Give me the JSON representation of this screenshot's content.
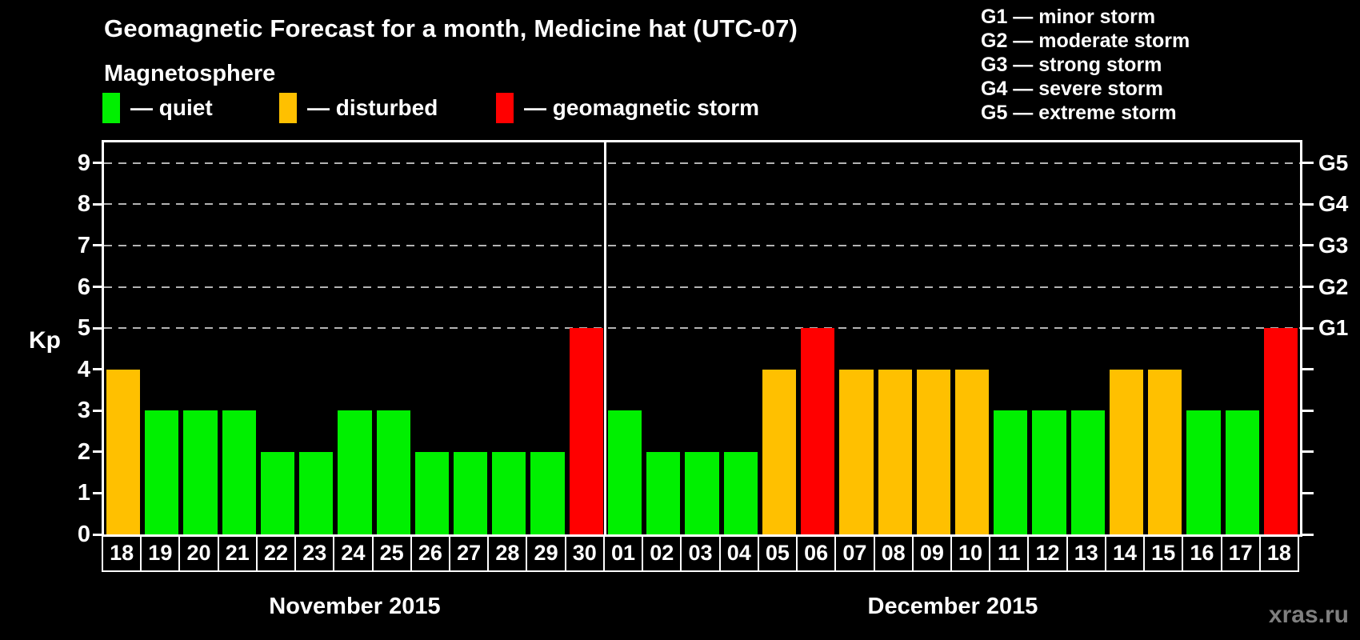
{
  "header": {
    "title": "Geomagnetic Forecast for a month, Medicine hat (UTC-07)",
    "subtitle": "Magnetosphere"
  },
  "legend": {
    "items": [
      {
        "name": "quiet",
        "label": "— quiet",
        "color": "#00f000"
      },
      {
        "name": "disturbed",
        "label": "— disturbed",
        "color": "#ffc000"
      },
      {
        "name": "geomagnetic-storm",
        "label": "— geomagnetic storm",
        "color": "#ff0000"
      }
    ]
  },
  "g_legend": {
    "items": [
      "G1 — minor storm",
      "G2 — moderate storm",
      "G3 — strong storm",
      "G4 — severe storm",
      "G5 — extreme storm"
    ]
  },
  "watermark": "xras.ru",
  "chart_data": {
    "type": "bar",
    "title": "Geomagnetic Forecast for a month, Medicine hat (UTC-07)",
    "ylabel": "Kp",
    "ylim": [
      0,
      9.5
    ],
    "y_ticks": [
      0,
      1,
      2,
      3,
      4,
      5,
      6,
      7,
      8,
      9
    ],
    "gridlines_at_kp": [
      5,
      6,
      7,
      8,
      9
    ],
    "grid_color": "#b3b3b3",
    "right_axis_labels": [
      {
        "kp": 5,
        "label": "G1"
      },
      {
        "kp": 6,
        "label": "G2"
      },
      {
        "kp": 7,
        "label": "G3"
      },
      {
        "kp": 8,
        "label": "G4"
      },
      {
        "kp": 9,
        "label": "G5"
      }
    ],
    "bar_colors": {
      "quiet": "#00f000",
      "disturbed": "#ffc000",
      "storm": "#ff0000"
    },
    "color_rule": "Kp<=3 quiet (green), Kp=4 disturbed (orange), Kp>=5 geomagnetic storm (red)",
    "groups": [
      {
        "label": "November 2015",
        "days": [
          "18",
          "19",
          "20",
          "21",
          "22",
          "23",
          "24",
          "25",
          "26",
          "27",
          "28",
          "29",
          "30"
        ],
        "values": [
          4,
          3,
          3,
          3,
          2,
          2,
          3,
          3,
          2,
          2,
          2,
          2,
          5
        ],
        "status": [
          "disturbed",
          "quiet",
          "quiet",
          "quiet",
          "quiet",
          "quiet",
          "quiet",
          "quiet",
          "quiet",
          "quiet",
          "quiet",
          "quiet",
          "storm"
        ]
      },
      {
        "label": "December 2015",
        "days": [
          "01",
          "02",
          "03",
          "04",
          "05",
          "06",
          "07",
          "08",
          "09",
          "10",
          "11",
          "12",
          "13",
          "14",
          "15",
          "16",
          "17",
          "18"
        ],
        "values": [
          3,
          2,
          2,
          2,
          4,
          5,
          4,
          4,
          4,
          4,
          3,
          3,
          3,
          4,
          4,
          3,
          3,
          5
        ],
        "status": [
          "quiet",
          "quiet",
          "quiet",
          "quiet",
          "disturbed",
          "storm",
          "disturbed",
          "disturbed",
          "disturbed",
          "disturbed",
          "quiet",
          "quiet",
          "quiet",
          "disturbed",
          "disturbed",
          "quiet",
          "quiet",
          "storm"
        ]
      }
    ]
  }
}
